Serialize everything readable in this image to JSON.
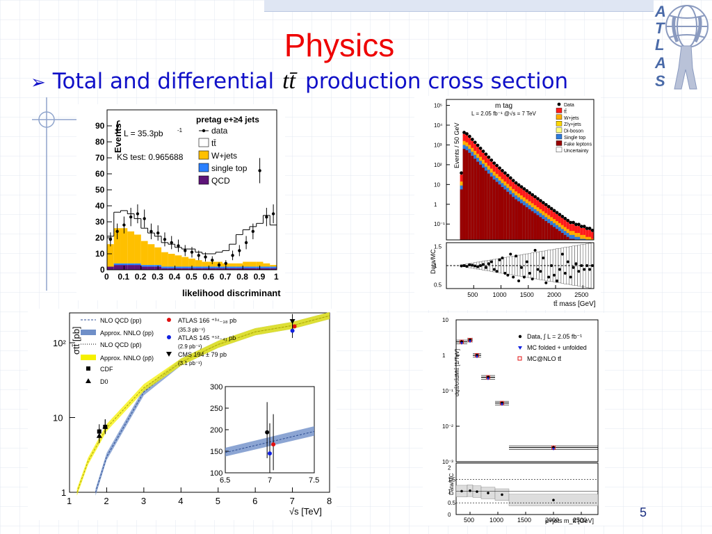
{
  "slide": {
    "title": "Physics",
    "bullet_pre": "Total and differential",
    "bullet_symbol": "tt̄",
    "bullet_post": "production cross section",
    "page_number": "5",
    "logo_letters": [
      "A",
      "T",
      "L",
      "A",
      "S"
    ],
    "colors": {
      "title": "#ee0000",
      "bullet": "#1010c8",
      "logo": "#4a6aa8",
      "grid": "#d6dde8"
    }
  },
  "chart_data": [
    {
      "type": "bar",
      "id": "likelihood",
      "title": "pretag e+≥4 jets",
      "xlabel": "likelihood discriminant",
      "ylabel": "Events",
      "xlim": [
        0,
        1
      ],
      "ylim": [
        0,
        100
      ],
      "xticks": [
        "0",
        "0.1",
        "0.2",
        "0.3",
        "0.4",
        "0.5",
        "0.6",
        "0.7",
        "0.8",
        "0.9",
        "1"
      ],
      "yticks": [
        "0",
        "10",
        "20",
        "30",
        "40",
        "50",
        "60",
        "70",
        "80",
        "90"
      ],
      "annotations": [
        "L = 35.3pb",
        "-1",
        "KS test: 0.965688"
      ],
      "legend": [
        "data",
        "tt̄",
        "W+jets",
        "single top",
        "QCD"
      ],
      "colors": {
        "ttbar": "#ffffff",
        "wjets": "#ffc000",
        "singletop": "#2a7fff",
        "qcd": "#5e1478",
        "data": "#000000"
      },
      "bins_lo": [
        0,
        0.04,
        0.08,
        0.12,
        0.16,
        0.2,
        0.24,
        0.28,
        0.32,
        0.36,
        0.4,
        0.44,
        0.48,
        0.52,
        0.56,
        0.6,
        0.64,
        0.68,
        0.72,
        0.76,
        0.8,
        0.84,
        0.88,
        0.92,
        0.96
      ],
      "qcd": [
        2,
        3,
        3,
        3,
        3,
        2,
        2,
        2,
        1,
        1,
        1,
        1,
        1,
        1,
        1,
        1,
        1,
        1,
        1,
        1,
        1,
        1,
        1,
        1,
        1
      ],
      "singletop": [
        0,
        1,
        1,
        1,
        1,
        1,
        1,
        1,
        1,
        1,
        1,
        1,
        1,
        1,
        1,
        1,
        1,
        1,
        1,
        1,
        1,
        1,
        1,
        1,
        1
      ],
      "wjets": [
        14,
        22,
        22,
        20,
        18,
        15,
        13,
        11,
        9,
        8,
        7,
        6,
        5,
        4,
        3,
        3,
        3,
        2,
        2,
        2,
        3,
        3,
        3,
        2,
        1
      ],
      "ttbar": [
        5,
        10,
        11,
        11,
        10,
        8,
        7,
        7,
        6,
        6,
        5,
        5,
        6,
        5,
        5,
        5,
        6,
        8,
        12,
        18,
        20,
        22,
        24,
        30,
        25
      ],
      "data_x": [
        0.02,
        0.06,
        0.1,
        0.14,
        0.18,
        0.22,
        0.26,
        0.3,
        0.34,
        0.38,
        0.42,
        0.46,
        0.5,
        0.54,
        0.58,
        0.62,
        0.66,
        0.7,
        0.74,
        0.78,
        0.82,
        0.86,
        0.9,
        0.94,
        0.98
      ],
      "data_y": [
        19,
        24,
        28,
        33,
        35,
        32,
        24,
        23,
        19,
        17,
        15,
        12,
        11,
        9,
        8,
        6,
        3,
        4,
        9,
        12,
        17,
        24,
        62,
        33,
        35
      ]
    },
    {
      "type": "bar",
      "id": "ttbar-mass",
      "title": "m tag",
      "xlabel": "tt̄ mass [GeV]",
      "ylabel": "Events / 50 GeV",
      "ratio_ylabel": "Data/MC",
      "xlim": [
        0,
        2700
      ],
      "ylim_log": [
        -1.8,
        5.3
      ],
      "ylim_ratio": [
        0.4,
        1.6
      ],
      "xticks": [
        "500",
        "1000",
        "1500",
        "2000",
        "2500"
      ],
      "yticks": [
        "10⁻¹",
        "1",
        "10",
        "10²",
        "10³",
        "10⁴",
        "10⁵"
      ],
      "ratio_yticks": [
        "0.5",
        "1",
        "1.5"
      ],
      "annotations": [
        "L = 2.05 fb⁻¹ @√s = 7 TeV"
      ],
      "legend": [
        "Data",
        "tt̄",
        "W+jets",
        "Z/γ+jets",
        "Di-boson",
        "Single top",
        "Fake leptons",
        "Uncertainty"
      ],
      "colors": {
        "ttbar": "#ff1a1a",
        "wjets": "#ffae00",
        "zjets": "#ffd700",
        "diboson": "#ffff80",
        "singletop": "#2e7bdc",
        "fake": "#990000"
      },
      "x_centers": [
        275,
        325,
        375,
        425,
        475,
        525,
        575,
        625,
        675,
        725,
        775,
        825,
        875,
        925,
        975,
        1025,
        1075,
        1125,
        1175,
        1225,
        1275,
        1325,
        1375,
        1425,
        1475,
        1525,
        1575,
        1625,
        1675,
        1725,
        1775,
        1825,
        1875,
        1925,
        1975,
        2025,
        2075,
        2125,
        2175,
        2225,
        2275,
        2325,
        2375,
        2425,
        2475,
        2525,
        2575,
        2625,
        2675
      ],
      "total_log": [
        1.5,
        3.55,
        3.48,
        3.35,
        3.2,
        3.05,
        2.9,
        2.75,
        2.6,
        2.45,
        2.3,
        2.15,
        2.0,
        1.88,
        1.75,
        1.62,
        1.5,
        1.38,
        1.25,
        1.12,
        1.0,
        0.9,
        0.8,
        0.7,
        0.6,
        0.5,
        0.4,
        0.3,
        0.2,
        0.1,
        0.0,
        -0.1,
        -0.2,
        -0.3,
        -0.4,
        -0.5,
        -0.6,
        -0.7,
        -0.8,
        -0.9,
        -1.0,
        -1.0,
        -1.1,
        -1.1,
        -1.2,
        -1.2,
        -1.3,
        -1.3,
        -1.4
      ],
      "ratio": [
        0.99,
        1.0,
        0.98,
        1.02,
        1.01,
        0.99,
        0.97,
        1.0,
        1.03,
        0.95,
        1.05,
        1.1,
        0.9,
        0.85,
        1.15,
        1.2,
        0.8,
        0.75,
        1.3,
        0.7,
        1.25,
        0.6,
        0.95,
        0.7,
        1.1,
        0.8,
        0.65,
        1.4,
        0.9,
        0.85,
        1.2,
        0.55,
        0.7,
        1.0,
        0.75,
        0.6,
        0.9,
        1.3,
        0.8,
        1.1,
        0.7,
        0.95,
        1.05,
        0.85,
        1.0,
        0.9,
        1.0,
        0.9,
        1.0
      ]
    },
    {
      "type": "line",
      "id": "cross-section-vs-energy",
      "xlabel": "√s [TeV]",
      "ylabel": "σtt̄ [pb]",
      "xlim": [
        1,
        8
      ],
      "ylim_log": [
        0,
        2.4
      ],
      "xticks": [
        "1",
        "2",
        "3",
        "4",
        "5",
        "6",
        "7",
        "8"
      ],
      "yticks": [
        "1",
        "10",
        "10²"
      ],
      "legend": [
        "NLO QCD (pp)",
        "Approx. NNLO (pp)",
        "NLO QCD (pp̄)",
        "Approx. NNLO (pp̄)",
        "CDF",
        "D0",
        "ATLAS 166 ⁺³⁴₋₃₈ pb",
        "(35.3 pb⁻¹)",
        "ATLAS 145 ⁺⁵²₋₄₁ pb",
        "(2.9 pb⁻¹)",
        "CMS 194 ± 79 pb",
        "(3.1 pb⁻¹)"
      ],
      "series": [
        {
          "name": "Approx. NNLO (pp)",
          "x": [
            1.7,
            2,
            3,
            4,
            5,
            6,
            7,
            8
          ],
          "y": [
            1.0,
            3.0,
            22,
            55,
            95,
            140,
            170,
            230
          ]
        },
        {
          "name": "Approx. NNLO (pp̄)",
          "x": [
            1.2,
            1.5,
            2,
            3,
            4,
            5,
            6,
            7,
            8
          ],
          "y": [
            1.0,
            2.6,
            7.3,
            25,
            55,
            95,
            140,
            170,
            230
          ]
        }
      ],
      "points": [
        {
          "name": "CDF",
          "x": 1.8,
          "y": 6.5
        },
        {
          "name": "CDF",
          "x": 1.96,
          "y": 7.5
        },
        {
          "name": "D0",
          "x": 1.8,
          "y": 5.7
        },
        {
          "name": "D0",
          "x": 1.96,
          "y": 7.6
        },
        {
          "name": "ATLAS 166",
          "x": 7.0,
          "y": 166
        },
        {
          "name": "ATLAS 145",
          "x": 7.0,
          "y": 145
        },
        {
          "name": "CMS 194",
          "x": 7.0,
          "y": 194
        }
      ],
      "inset": {
        "xlim": [
          6.5,
          7.5
        ],
        "ylim": [
          100,
          300
        ],
        "xticks": [
          "6.5",
          "7",
          "7.5"
        ],
        "yticks": [
          "100",
          "150",
          "200",
          "250",
          "300"
        ]
      }
    },
    {
      "type": "scatter",
      "id": "differential-xsec",
      "xlabel": "μ+jets m_tt̄ [GeV]",
      "ylabel": "dσtt̄/σtt̄dMtt̄ [1/TeV]",
      "ratio_ylabel": "Data/MC",
      "xlim": [
        250,
        2800
      ],
      "ylim_log": [
        -3,
        1
      ],
      "xticks": [
        "500",
        "1000",
        "1500",
        "2000",
        "2500"
      ],
      "yticks": [
        "10⁻³",
        "10⁻²",
        "10⁻¹",
        "1",
        "10"
      ],
      "ratio_yticks": [
        "0",
        "0.5",
        "1",
        "1.5",
        "2"
      ],
      "legend": [
        "Data, ∫ L = 2.05 fb⁻¹",
        "MC folded + unfolded",
        "MC@NLO tt̄"
      ],
      "x_lo": [
        250,
        450,
        550,
        700,
        950,
        1200
      ],
      "x_hi": [
        450,
        550,
        700,
        950,
        1200,
        2800
      ],
      "values": [
        2.4,
        2.7,
        1.0,
        0.24,
        0.045,
        0.0025
      ],
      "ratio": [
        1.0,
        1.02,
        0.98,
        0.92,
        0.85,
        0.62
      ]
    }
  ]
}
